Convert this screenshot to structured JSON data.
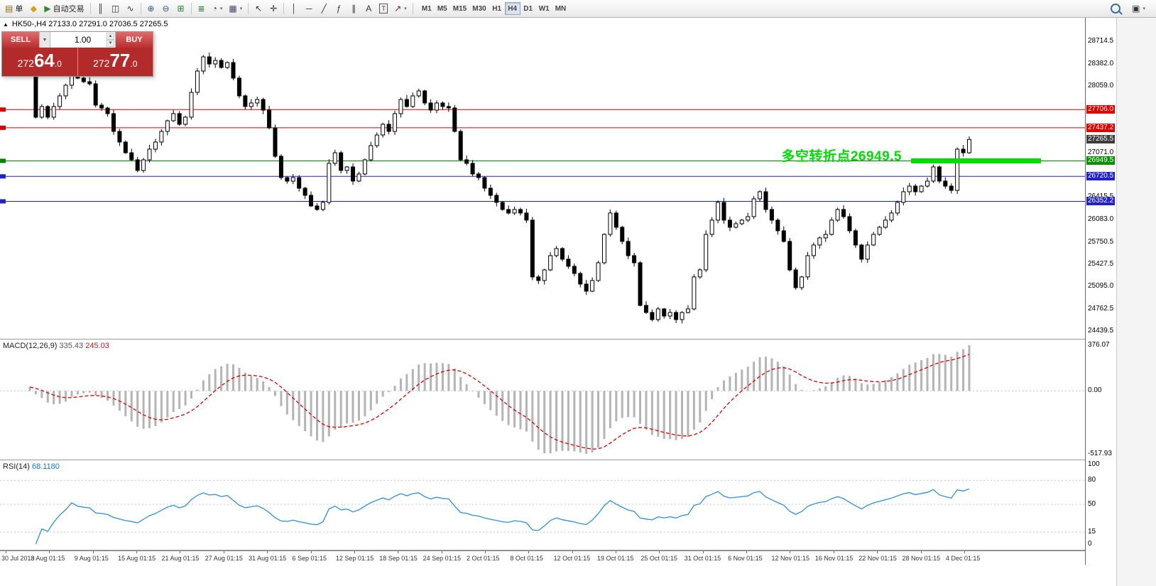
{
  "toolbar": {
    "buttons": [
      {
        "name": "new-order",
        "label": "单"
      },
      {
        "name": "metaeditor"
      },
      {
        "name": "autotrading",
        "label": "自动交易"
      },
      {
        "name": "separator"
      },
      {
        "name": "bar-chart"
      },
      {
        "name": "candlestick-chart"
      },
      {
        "name": "line-chart"
      },
      {
        "name": "separator"
      },
      {
        "name": "zoom-in"
      },
      {
        "name": "zoom-out"
      },
      {
        "name": "tile-windows"
      },
      {
        "name": "separator"
      },
      {
        "name": "indicator-list"
      },
      {
        "name": "periods",
        "dropdown": true
      },
      {
        "name": "templates",
        "dropdown": true
      },
      {
        "name": "separator"
      },
      {
        "name": "cursor"
      },
      {
        "name": "crosshair"
      },
      {
        "name": "separator"
      },
      {
        "name": "vertical-line"
      },
      {
        "name": "horizontal-line"
      },
      {
        "name": "trendline"
      },
      {
        "name": "fibonacci"
      },
      {
        "name": "channels"
      },
      {
        "name": "text"
      },
      {
        "name": "text-label"
      },
      {
        "name": "arrows",
        "dropdown": true
      },
      {
        "name": "separator"
      }
    ],
    "timeframes": [
      "M1",
      "M5",
      "M15",
      "M30",
      "H1",
      "H4",
      "D1",
      "W1",
      "MN"
    ],
    "active_timeframe": "H4"
  },
  "chart": {
    "tick_direction": "▲",
    "symbol_info": "HK50-,H4 27133.0 27291.0 27036.5 27265.5",
    "one_click": {
      "sell_label": "SELL",
      "buy_label": "BUY",
      "volume": "1.00",
      "sell_price": {
        "prefix": "272",
        "big": "64",
        "suffix": ".0"
      },
      "buy_price": {
        "prefix": "272",
        "big": "77",
        "suffix": ".0"
      }
    },
    "annotation": {
      "text": "多空转折点26949.5",
      "color": "#00dd00"
    },
    "price_scale": [
      {
        "text": "28714.5",
        "kind": "plain"
      },
      {
        "text": "28382.0",
        "kind": "plain"
      },
      {
        "text": "28059.0",
        "kind": "plain"
      },
      {
        "text": "27706.0",
        "kind": "red"
      },
      {
        "text": "27437.2",
        "kind": "red"
      },
      {
        "text": "27265.5",
        "kind": "current"
      },
      {
        "text": "27071.0",
        "kind": "plain"
      },
      {
        "text": "26949.5",
        "kind": "green"
      },
      {
        "text": "26720.5",
        "kind": "blue"
      },
      {
        "text": "26415.5",
        "kind": "plain"
      },
      {
        "text": "26352.2",
        "kind": "blue"
      },
      {
        "text": "26083.0",
        "kind": "plain"
      },
      {
        "text": "25750.5",
        "kind": "plain"
      },
      {
        "text": "25427.5",
        "kind": "plain"
      },
      {
        "text": "25095.0",
        "kind": "plain"
      },
      {
        "text": "24762.5",
        "kind": "plain"
      },
      {
        "text": "24439.5",
        "kind": "plain"
      }
    ],
    "x_axis": [
      "30 Jul 2018",
      "3 Aug 01:15",
      "9 Aug 01:15",
      "15 Aug 01:15",
      "21 Aug 01:15",
      "27 Aug 01:15",
      "31 Aug 01:15",
      "6 Sep 01:15",
      "12 Sep 01:15",
      "18 Sep 01:15",
      "24 Sep 01:15",
      "2 Oct 01:15",
      "8 Oct 01:15",
      "12 Oct 01:15",
      "19 Oct 01:15",
      "25 Oct 01:15",
      "31 Oct 01:15",
      "6 Nov 01:15",
      "12 Nov 01:15",
      "16 Nov 01:15",
      "22 Nov 01:15",
      "28 Nov 01:15",
      "4 Dec 01:15"
    ]
  },
  "macd": {
    "title": "MACD(12,26,9)",
    "main_value": "335.43",
    "signal_value": "245.03",
    "axis_max": "376.07",
    "axis_zero": "0.00",
    "axis_min": "-517.93"
  },
  "rsi": {
    "title": "RSI(14)",
    "value": "68.1180",
    "axis": [
      "100",
      "80",
      "50",
      "15",
      "0"
    ]
  },
  "chart_data": {
    "type": "candlestick",
    "symbol": "HK50-",
    "timeframe": "H4",
    "ohlc": {
      "open": 27133.0,
      "high": 27291.0,
      "low": 27036.5,
      "close": 27265.5
    },
    "bid": 27264.0,
    "ask": 27277.0,
    "y_range": [
      24439.5,
      28714.5
    ],
    "closes": [
      28260,
      27594,
      27751,
      27594,
      27751,
      27908,
      28065,
      28327,
      28170,
      28117,
      28086,
      27771,
      27729,
      27646,
      27384,
      27227,
      27069,
      26965,
      26808,
      26965,
      27122,
      27227,
      27384,
      27541,
      27646,
      27489,
      27594,
      27960,
      28274,
      28484,
      28379,
      28431,
      28327,
      28400,
      28170,
      27908,
      27751,
      27803,
      27855,
      27698,
      27436,
      27017,
      26703,
      26650,
      26703,
      26546,
      26441,
      26284,
      26232,
      26337,
      26913,
      27069,
      26808,
      26860,
      26651,
      26756,
      26965,
      27174,
      27331,
      27489,
      27384,
      27646,
      27855,
      27751,
      27908,
      27981,
      27803,
      27698,
      27803,
      27751,
      27730,
      27384,
      26965,
      26913,
      26756,
      26703,
      26546,
      26441,
      26337,
      26232,
      26180,
      26232,
      26180,
      26075,
      25237,
      25184,
      25341,
      25551,
      25656,
      25499,
      25394,
      25289,
      25132,
      25027,
      25184,
      25446,
      25865,
      26180,
      25970,
      25761,
      25551,
      25446,
      24817,
      24713,
      24608,
      24765,
      24660,
      24713,
      24608,
      24713,
      24765,
      25237,
      25341,
      25865,
      26075,
      26337,
      26075,
      25970,
      26022,
      26075,
      26127,
      26389,
      26494,
      26232,
      26075,
      25918,
      25761,
      25341,
      25079,
      25237,
      25551,
      25708,
      25813,
      25865,
      26075,
      26232,
      26127,
      25918,
      25708,
      25499,
      25708,
      25865,
      25970,
      26075,
      26180,
      26337,
      26494,
      26577,
      26494,
      26577,
      26651,
      26860,
      26651,
      26577,
      26514,
      27122,
      27069,
      27265.5
    ],
    "horizontal_levels": [
      {
        "price": 27706.0,
        "color": "#dd0000"
      },
      {
        "price": 27437.2,
        "color": "#dd0000"
      },
      {
        "price": 26949.5,
        "color": "#008000"
      },
      {
        "price": 26720.5,
        "color": "#2222cc"
      },
      {
        "price": 26352.2,
        "color": "#2222cc"
      }
    ],
    "pivot_segment": {
      "price": 26949.5,
      "color": "#00dd00"
    },
    "current_price": 27265.5,
    "indicators": [
      {
        "name": "MACD",
        "params": "12,26,9",
        "values": [
          335.43,
          245.03
        ],
        "axis": [
          376.07,
          0.0,
          -517.93
        ]
      },
      {
        "name": "RSI",
        "params": "14",
        "value": 68.118,
        "levels": [
          100,
          80,
          50,
          15,
          0
        ]
      }
    ]
  }
}
